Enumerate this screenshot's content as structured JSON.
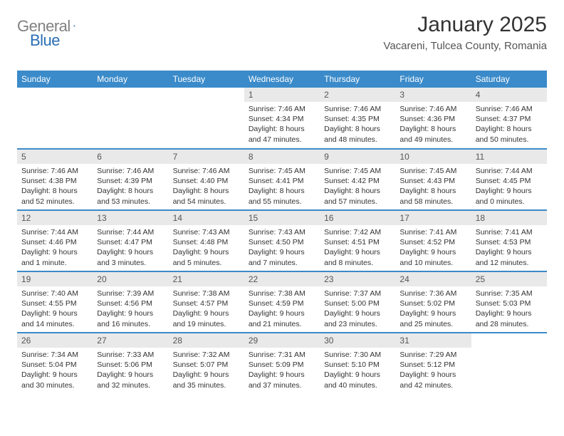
{
  "brand": {
    "part1": "General",
    "part2": "Blue"
  },
  "title": "January 2025",
  "location": "Vacareni, Tulcea County, Romania",
  "colors": {
    "header_bg": "#3b8bca",
    "header_text": "#ffffff",
    "day_shade": "#e9e9e9",
    "rule": "#3b8bca",
    "logo_gray": "#808080",
    "logo_blue": "#2a6fb5"
  },
  "weekdays": [
    "Sunday",
    "Monday",
    "Tuesday",
    "Wednesday",
    "Thursday",
    "Friday",
    "Saturday"
  ],
  "weeks": [
    [
      {
        "empty": true
      },
      {
        "empty": true
      },
      {
        "empty": true
      },
      {
        "num": "1",
        "sunrise": "7:46 AM",
        "sunset": "4:34 PM",
        "daylight": "8 hours and 47 minutes."
      },
      {
        "num": "2",
        "sunrise": "7:46 AM",
        "sunset": "4:35 PM",
        "daylight": "8 hours and 48 minutes."
      },
      {
        "num": "3",
        "sunrise": "7:46 AM",
        "sunset": "4:36 PM",
        "daylight": "8 hours and 49 minutes."
      },
      {
        "num": "4",
        "sunrise": "7:46 AM",
        "sunset": "4:37 PM",
        "daylight": "8 hours and 50 minutes."
      }
    ],
    [
      {
        "num": "5",
        "sunrise": "7:46 AM",
        "sunset": "4:38 PM",
        "daylight": "8 hours and 52 minutes."
      },
      {
        "num": "6",
        "sunrise": "7:46 AM",
        "sunset": "4:39 PM",
        "daylight": "8 hours and 53 minutes."
      },
      {
        "num": "7",
        "sunrise": "7:46 AM",
        "sunset": "4:40 PM",
        "daylight": "8 hours and 54 minutes."
      },
      {
        "num": "8",
        "sunrise": "7:45 AM",
        "sunset": "4:41 PM",
        "daylight": "8 hours and 55 minutes."
      },
      {
        "num": "9",
        "sunrise": "7:45 AM",
        "sunset": "4:42 PM",
        "daylight": "8 hours and 57 minutes."
      },
      {
        "num": "10",
        "sunrise": "7:45 AM",
        "sunset": "4:43 PM",
        "daylight": "8 hours and 58 minutes."
      },
      {
        "num": "11",
        "sunrise": "7:44 AM",
        "sunset": "4:45 PM",
        "daylight": "9 hours and 0 minutes."
      }
    ],
    [
      {
        "num": "12",
        "sunrise": "7:44 AM",
        "sunset": "4:46 PM",
        "daylight": "9 hours and 1 minute."
      },
      {
        "num": "13",
        "sunrise": "7:44 AM",
        "sunset": "4:47 PM",
        "daylight": "9 hours and 3 minutes."
      },
      {
        "num": "14",
        "sunrise": "7:43 AM",
        "sunset": "4:48 PM",
        "daylight": "9 hours and 5 minutes."
      },
      {
        "num": "15",
        "sunrise": "7:43 AM",
        "sunset": "4:50 PM",
        "daylight": "9 hours and 7 minutes."
      },
      {
        "num": "16",
        "sunrise": "7:42 AM",
        "sunset": "4:51 PM",
        "daylight": "9 hours and 8 minutes."
      },
      {
        "num": "17",
        "sunrise": "7:41 AM",
        "sunset": "4:52 PM",
        "daylight": "9 hours and 10 minutes."
      },
      {
        "num": "18",
        "sunrise": "7:41 AM",
        "sunset": "4:53 PM",
        "daylight": "9 hours and 12 minutes."
      }
    ],
    [
      {
        "num": "19",
        "sunrise": "7:40 AM",
        "sunset": "4:55 PM",
        "daylight": "9 hours and 14 minutes."
      },
      {
        "num": "20",
        "sunrise": "7:39 AM",
        "sunset": "4:56 PM",
        "daylight": "9 hours and 16 minutes."
      },
      {
        "num": "21",
        "sunrise": "7:38 AM",
        "sunset": "4:57 PM",
        "daylight": "9 hours and 19 minutes."
      },
      {
        "num": "22",
        "sunrise": "7:38 AM",
        "sunset": "4:59 PM",
        "daylight": "9 hours and 21 minutes."
      },
      {
        "num": "23",
        "sunrise": "7:37 AM",
        "sunset": "5:00 PM",
        "daylight": "9 hours and 23 minutes."
      },
      {
        "num": "24",
        "sunrise": "7:36 AM",
        "sunset": "5:02 PM",
        "daylight": "9 hours and 25 minutes."
      },
      {
        "num": "25",
        "sunrise": "7:35 AM",
        "sunset": "5:03 PM",
        "daylight": "9 hours and 28 minutes."
      }
    ],
    [
      {
        "num": "26",
        "sunrise": "7:34 AM",
        "sunset": "5:04 PM",
        "daylight": "9 hours and 30 minutes."
      },
      {
        "num": "27",
        "sunrise": "7:33 AM",
        "sunset": "5:06 PM",
        "daylight": "9 hours and 32 minutes."
      },
      {
        "num": "28",
        "sunrise": "7:32 AM",
        "sunset": "5:07 PM",
        "daylight": "9 hours and 35 minutes."
      },
      {
        "num": "29",
        "sunrise": "7:31 AM",
        "sunset": "5:09 PM",
        "daylight": "9 hours and 37 minutes."
      },
      {
        "num": "30",
        "sunrise": "7:30 AM",
        "sunset": "5:10 PM",
        "daylight": "9 hours and 40 minutes."
      },
      {
        "num": "31",
        "sunrise": "7:29 AM",
        "sunset": "5:12 PM",
        "daylight": "9 hours and 42 minutes."
      },
      {
        "empty": true
      }
    ]
  ],
  "labels": {
    "sunrise": "Sunrise: ",
    "sunset": "Sunset: ",
    "daylight": "Daylight: "
  }
}
